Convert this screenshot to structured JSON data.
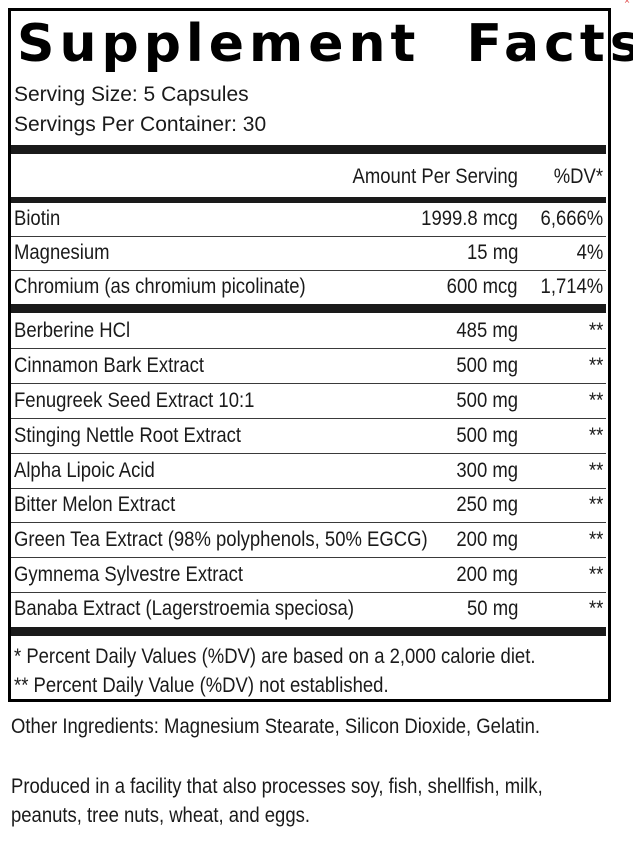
{
  "label": {
    "corner_mark": "×",
    "title": "Supplement  Facts",
    "serving_size": "Serving Size: 5 Capsules",
    "servings_per_container": "Servings Per Container: 30",
    "columns": {
      "amount": "Amount Per Serving",
      "dv": "%DV*"
    },
    "vitamins_minerals": [
      {
        "name": "Biotin",
        "amount": "1999.8 mcg",
        "dv": "6,666%"
      },
      {
        "name": "Magnesium",
        "amount": "15 mg",
        "dv": "4%"
      },
      {
        "name": "Chromium (as chromium picolinate)",
        "amount": "600 mcg",
        "dv": "1,714%"
      }
    ],
    "other_ingredients_list": [
      {
        "name": "Berberine HCl",
        "amount": "485 mg",
        "dv": "**"
      },
      {
        "name": "Cinnamon Bark Extract",
        "amount": "500 mg",
        "dv": "**"
      },
      {
        "name": "Fenugreek Seed Extract 10:1",
        "amount": "500 mg",
        "dv": "**"
      },
      {
        "name": "Stinging Nettle Root Extract",
        "amount": "500 mg",
        "dv": "**"
      },
      {
        "name": "Alpha Lipoic Acid",
        "amount": "300 mg",
        "dv": "**"
      },
      {
        "name": "Bitter Melon Extract",
        "amount": "250 mg",
        "dv": "**"
      },
      {
        "name": "Green Tea Extract (98% polyphenols, 50% EGCG)",
        "amount": "200 mg",
        "dv": "**"
      },
      {
        "name": "Gymnema Sylvestre Extract",
        "amount": "200 mg",
        "dv": "**"
      },
      {
        "name": "Banaba Extract (Lagerstroemia speciosa)",
        "amount": "50 mg",
        "dv": "**"
      }
    ],
    "footnotes": [
      "* Percent Daily Values (%DV) are based on a 2,000 calorie diet.",
      "** Percent Daily Value (%DV) not established."
    ]
  },
  "below_label": {
    "other_ingredients": "Other Ingredients: Magnesium Stearate, Silicon Dioxide, Gelatin.",
    "allergen_line1": "Produced in a facility that also processes soy, fish, shellfish, milk,",
    "allergen_line2": "peanuts, tree nuts, wheat, and eggs."
  }
}
